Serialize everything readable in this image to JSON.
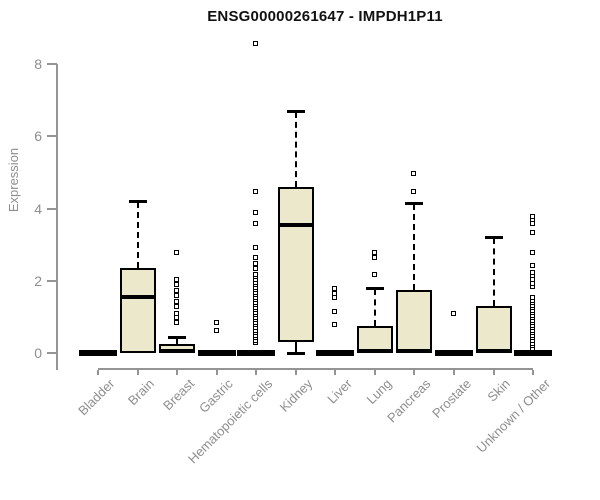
{
  "colors": {
    "box_fill": "#ece8cc",
    "line": "#000000",
    "axis": "#949494",
    "text_muted": "#8e8e8e",
    "title": "#111111"
  },
  "chart_data": {
    "type": "boxplot",
    "title": "ENSG00000261647 - IMPDH1P11",
    "ylabel": "Expression",
    "xlabel": "",
    "ylim": [
      0,
      8.7
    ],
    "yticks": [
      0,
      2,
      4,
      6,
      8
    ],
    "grid": false,
    "legend": "none",
    "categories": [
      {
        "label": "Bladder",
        "collapsed": true,
        "q1": 0,
        "median": 0,
        "q3": 0,
        "whisker_low": 0,
        "whisker_high": 0,
        "outliers": []
      },
      {
        "label": "Brain",
        "collapsed": false,
        "q1": 0,
        "median": 1.55,
        "q3": 2.35,
        "whisker_low": null,
        "whisker_high": 4.2,
        "outliers": []
      },
      {
        "label": "Breast",
        "collapsed": false,
        "q1": 0,
        "median": 0.05,
        "q3": 0.25,
        "whisker_low": null,
        "whisker_high": 0.45,
        "outliers": [
          0.85,
          1.0,
          1.1,
          1.3,
          1.45,
          1.6,
          1.75,
          1.9,
          2.05,
          2.8
        ]
      },
      {
        "label": "Gastric",
        "collapsed": true,
        "q1": 0,
        "median": 0,
        "q3": 0,
        "whisker_low": 0,
        "whisker_high": 0,
        "outliers": [
          0.65,
          0.85
        ]
      },
      {
        "label": "Hematopoietic cells",
        "collapsed": true,
        "q1": 0,
        "median": 0,
        "q3": 0,
        "whisker_low": 0,
        "whisker_high": 0,
        "outliers": [
          0.3,
          0.37,
          0.44,
          0.51,
          0.58,
          0.65,
          0.72,
          0.79,
          0.86,
          0.93,
          1.0,
          1.07,
          1.14,
          1.21,
          1.28,
          1.35,
          1.42,
          1.49,
          1.56,
          1.63,
          1.7,
          1.77,
          1.84,
          1.91,
          1.98,
          2.05,
          2.12,
          2.2,
          2.35,
          2.5,
          2.65,
          2.95,
          3.6,
          3.9,
          4.5,
          8.6
        ]
      },
      {
        "label": "Kidney",
        "collapsed": false,
        "q1": 0.3,
        "median": 3.55,
        "q3": 4.6,
        "whisker_low": 0,
        "whisker_high": 6.7,
        "outliers": []
      },
      {
        "label": "Liver",
        "collapsed": true,
        "q1": 0,
        "median": 0,
        "q3": 0,
        "whisker_low": 0,
        "whisker_high": 0,
        "outliers": [
          0.8,
          1.15,
          1.55,
          1.65,
          1.8
        ]
      },
      {
        "label": "Lung",
        "collapsed": false,
        "q1": 0,
        "median": 0.05,
        "q3": 0.75,
        "whisker_low": null,
        "whisker_high": 1.8,
        "outliers": [
          2.2,
          2.65,
          2.8
        ]
      },
      {
        "label": "Pancreas",
        "collapsed": false,
        "q1": 0,
        "median": 0.05,
        "q3": 1.75,
        "whisker_low": null,
        "whisker_high": 4.15,
        "outliers": [
          4.5,
          5.0
        ]
      },
      {
        "label": "Prostate",
        "collapsed": true,
        "q1": 0,
        "median": 0,
        "q3": 0,
        "whisker_low": 0,
        "whisker_high": 0,
        "outliers": [
          1.1
        ]
      },
      {
        "label": "Skin",
        "collapsed": false,
        "q1": 0,
        "median": 0.05,
        "q3": 1.3,
        "whisker_low": null,
        "whisker_high": 3.2,
        "outliers": []
      },
      {
        "label": "Unknown / Other",
        "collapsed": true,
        "q1": 0,
        "median": 0,
        "q3": 0,
        "whisker_low": 0,
        "whisker_high": 0,
        "outliers": [
          0.15,
          0.22,
          0.29,
          0.36,
          0.43,
          0.5,
          0.57,
          0.64,
          0.71,
          0.78,
          0.85,
          0.92,
          0.99,
          1.06,
          1.13,
          1.2,
          1.27,
          1.34,
          1.41,
          1.48,
          1.55,
          1.85,
          1.95,
          2.05,
          2.15,
          2.25,
          2.45,
          2.8,
          3.35,
          3.6,
          3.7,
          3.8
        ]
      }
    ]
  }
}
